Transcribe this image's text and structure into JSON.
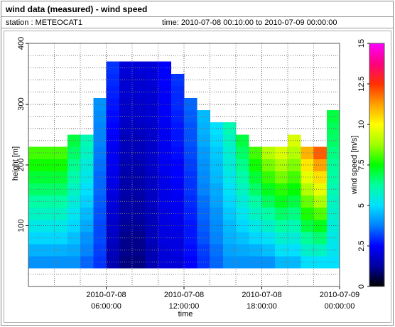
{
  "chart_data": {
    "type": "heatmap",
    "title": "wind data (measured) - wind speed",
    "station": "station : METEOCAT1",
    "period": "time: 2010-07-08 00:10:00 to 2010-07-09 00:00:00",
    "xlabel": "time",
    "ylabel": "height [m]",
    "xlim": [
      "2010-07-08 00:00:00",
      "2010-07-09 00:00:00"
    ],
    "xticks": [
      "2010-07-08 06:00:00",
      "2010-07-08 12:00:00",
      "2010-07-08 18:00:00",
      "2010-07-09 00:00:00"
    ],
    "xminorticks": [
      "2010-07-08 02:00:00",
      "2010-07-08 04:00:00",
      "2010-07-08 08:00:00",
      "2010-07-08 10:00:00",
      "2010-07-08 14:00:00",
      "2010-07-08 16:00:00",
      "2010-07-08 20:00:00",
      "2010-07-08 22:00:00"
    ],
    "ylim": [
      0,
      400
    ],
    "yticks": [
      100,
      200,
      300,
      400
    ],
    "yminorticks": [
      20,
      40,
      60,
      80,
      120,
      140,
      160,
      180,
      220,
      240,
      260,
      280,
      320,
      340,
      360,
      380
    ],
    "grid": true,
    "cell_width_hours": 1,
    "cell_height": 20,
    "x": [
      "2010-07-08 00:30:00",
      "2010-07-08 01:30:00",
      "2010-07-08 02:30:00",
      "2010-07-08 03:30:00",
      "2010-07-08 04:30:00",
      "2010-07-08 05:30:00",
      "2010-07-08 06:30:00",
      "2010-07-08 07:30:00",
      "2010-07-08 08:30:00",
      "2010-07-08 09:30:00",
      "2010-07-08 10:30:00",
      "2010-07-08 11:30:00",
      "2010-07-08 12:30:00",
      "2010-07-08 13:30:00",
      "2010-07-08 14:30:00",
      "2010-07-08 15:30:00",
      "2010-07-08 16:30:00",
      "2010-07-08 17:30:00",
      "2010-07-08 18:30:00",
      "2010-07-08 19:30:00",
      "2010-07-08 20:30:00",
      "2010-07-08 21:30:00",
      "2010-07-08 22:30:00",
      "2010-07-08 23:30:00"
    ],
    "y": [
      40,
      60,
      80,
      100,
      120,
      140,
      160,
      180,
      200,
      220,
      240,
      260,
      280,
      300,
      320,
      340,
      360
    ],
    "z": [
      [
        4.0,
        4.0,
        4.0,
        4.0,
        3.5,
        3.0,
        1.5,
        1.0,
        1.0,
        1.5,
        2.0,
        2.0,
        2.5,
        3.0,
        3.5,
        4.0,
        4.0,
        4.0,
        4.0,
        4.5,
        4.5,
        5.0,
        5.0,
        5.0
      ],
      [
        4.4,
        4.4,
        4.4,
        4.3,
        3.8,
        3.1,
        1.6,
        1.1,
        1.1,
        1.5,
        2.0,
        2.1,
        2.6,
        3.1,
        3.6,
        4.2,
        4.3,
        4.4,
        4.6,
        5.1,
        5.0,
        5.7,
        5.8,
        5.2
      ],
      [
        4.9,
        4.9,
        4.9,
        4.6,
        4.0,
        3.2,
        1.7,
        1.1,
        1.1,
        1.6,
        2.1,
        2.1,
        2.7,
        3.3,
        3.8,
        4.4,
        4.6,
        4.9,
        5.1,
        5.6,
        5.5,
        6.3,
        6.6,
        5.3
      ],
      [
        5.3,
        5.3,
        5.3,
        4.9,
        4.3,
        3.2,
        1.8,
        1.2,
        1.2,
        1.6,
        2.1,
        2.2,
        2.7,
        3.4,
        3.9,
        4.5,
        4.9,
        5.3,
        5.7,
        6.2,
        6.0,
        7.0,
        7.3,
        5.5
      ],
      [
        5.8,
        5.8,
        5.8,
        5.2,
        4.5,
        3.3,
        1.9,
        1.3,
        1.3,
        1.6,
        2.1,
        2.3,
        2.8,
        3.5,
        4.0,
        4.7,
        5.2,
        5.8,
        6.2,
        6.7,
        6.5,
        7.7,
        8.1,
        5.7
      ],
      [
        6.2,
        6.2,
        6.2,
        5.5,
        4.8,
        3.4,
        2.0,
        1.3,
        1.3,
        1.7,
        2.2,
        2.3,
        2.9,
        3.6,
        4.2,
        4.9,
        5.5,
        6.2,
        6.8,
        7.3,
        7.0,
        8.3,
        8.9,
        5.8
      ],
      [
        6.7,
        6.7,
        6.7,
        5.8,
        5.0,
        3.5,
        2.1,
        1.4,
        1.4,
        1.7,
        2.2,
        2.4,
        3.0,
        3.8,
        4.3,
        5.1,
        5.8,
        6.7,
        7.3,
        7.8,
        7.5,
        9.0,
        9.7,
        6.0
      ],
      [
        7.1,
        7.1,
        7.1,
        6.1,
        5.3,
        3.5,
        2.2,
        1.4,
        1.4,
        1.7,
        2.2,
        2.5,
        3.0,
        3.9,
        4.5,
        5.3,
        6.1,
        7.1,
        7.9,
        8.4,
        8.0,
        9.7,
        10.4,
        6.2
      ],
      [
        7.6,
        7.6,
        7.6,
        6.4,
        5.5,
        3.6,
        2.3,
        1.5,
        1.5,
        1.8,
        2.3,
        2.5,
        3.1,
        4.0,
        4.6,
        5.5,
        6.4,
        7.6,
        8.4,
        8.9,
        8.5,
        10.3,
        11.2,
        6.3
      ],
      [
        8.0,
        8.0,
        8.0,
        6.7,
        5.8,
        3.7,
        2.3,
        1.6,
        1.6,
        1.8,
        2.3,
        2.6,
        3.2,
        4.1,
        4.7,
        5.6,
        6.7,
        8.0,
        9.0,
        9.5,
        9.0,
        11.0,
        12.0,
        6.5
      ],
      [
        null,
        null,
        null,
        7.0,
        6.0,
        3.8,
        2.4,
        1.6,
        1.6,
        1.8,
        2.3,
        2.7,
        3.3,
        4.3,
        4.9,
        5.8,
        7.0,
        null,
        null,
        null,
        9.5,
        null,
        null,
        6.7
      ],
      [
        null,
        null,
        null,
        null,
        null,
        3.8,
        2.5,
        1.7,
        1.7,
        1.8,
        2.3,
        2.7,
        3.3,
        4.4,
        5.0,
        6.0,
        null,
        null,
        null,
        null,
        null,
        null,
        null,
        6.8
      ],
      [
        null,
        null,
        null,
        null,
        null,
        3.9,
        2.6,
        1.8,
        1.8,
        1.9,
        2.4,
        2.8,
        3.4,
        4.5,
        null,
        null,
        null,
        null,
        null,
        null,
        null,
        null,
        null,
        7.0
      ],
      [
        null,
        null,
        null,
        null,
        null,
        4.0,
        2.7,
        1.8,
        1.8,
        1.9,
        2.4,
        2.9,
        3.5,
        null,
        null,
        null,
        null,
        null,
        null,
        null,
        null,
        null,
        null,
        null
      ],
      [
        null,
        null,
        null,
        null,
        null,
        null,
        2.8,
        1.9,
        1.9,
        1.9,
        2.4,
        2.9,
        null,
        null,
        null,
        null,
        null,
        null,
        null,
        null,
        null,
        null,
        null,
        null
      ],
      [
        null,
        null,
        null,
        null,
        null,
        null,
        2.9,
        1.9,
        1.9,
        2.0,
        2.5,
        3.0,
        null,
        null,
        null,
        null,
        null,
        null,
        null,
        null,
        null,
        null,
        null,
        null
      ],
      [
        null,
        null,
        null,
        null,
        null,
        null,
        3.0,
        2.0,
        2.0,
        2.0,
        2.5,
        null,
        null,
        null,
        null,
        null,
        null,
        null,
        null,
        null,
        null,
        null,
        null,
        null
      ]
    ],
    "colorbar": {
      "label": "wind speed [m/s]",
      "lim": [
        0,
        15
      ],
      "ticks": [
        0,
        2.5,
        5,
        7.5,
        10,
        12.5,
        15
      ],
      "colors": [
        "#000000",
        "#0000a0",
        "#0000ff",
        "#0080ff",
        "#00e0ff",
        "#00ffa0",
        "#00ff00",
        "#a0ff00",
        "#ffff00",
        "#ffa000",
        "#ff3000",
        "#ff0080",
        "#ff00ff"
      ]
    }
  }
}
